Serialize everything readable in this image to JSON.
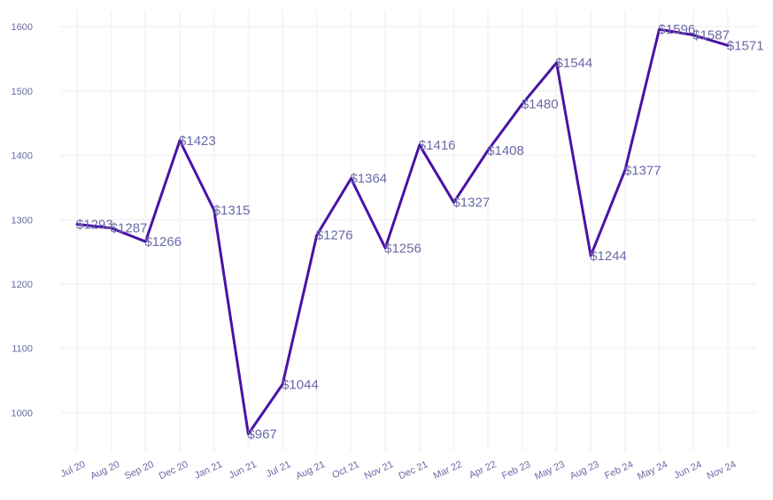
{
  "chart_data": {
    "type": "line",
    "title": "",
    "xlabel": "",
    "ylabel": "",
    "ylim": [
      940,
      1625
    ],
    "yticks": [
      1000,
      1100,
      1200,
      1300,
      1400,
      1500,
      1600
    ],
    "grid": true,
    "line_color": "#4b12a6",
    "label_color": "#6a6aa8",
    "categories": [
      "Jul 20",
      "Aug 20",
      "Sep 20",
      "Dec 20",
      "Jan 21",
      "Jun 21",
      "Jul 21",
      "Aug 21",
      "Oct 21",
      "Nov 21",
      "Dec 21",
      "Mar 22",
      "Apr 22",
      "Feb 23",
      "May 23",
      "Aug 23",
      "Feb 24",
      "May 24",
      "Jun 24",
      "Nov 24"
    ],
    "values": [
      1293,
      1287,
      1266,
      1423,
      1315,
      967,
      1044,
      1276,
      1364,
      1256,
      1416,
      1327,
      1408,
      1480,
      1544,
      1244,
      1377,
      1596,
      1587,
      1571
    ],
    "data_labels": [
      "$1293",
      "$1287",
      "$1266",
      "$1423",
      "$1315",
      "$967",
      "$1044",
      "$1276",
      "$1364",
      "$1256",
      "$1416",
      "$1327",
      "$1408",
      "$1480",
      "$1544",
      "$1244",
      "$1377",
      "$1596",
      "$1587",
      "$1571"
    ]
  }
}
